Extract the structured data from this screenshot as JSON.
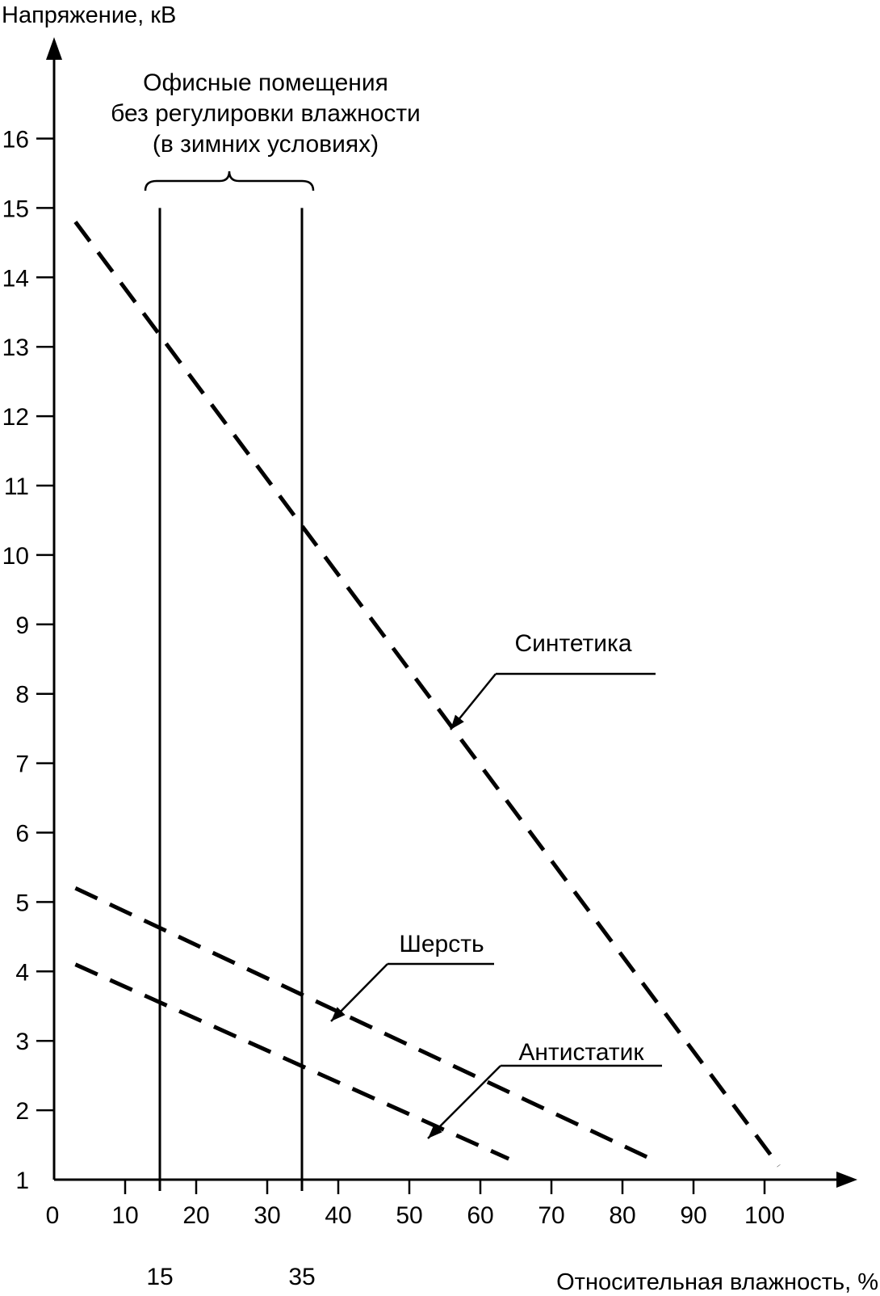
{
  "chart_data": {
    "type": "line",
    "ylabel": "Напряжение, кВ",
    "xlabel": "Относительная влажность, %",
    "xlim": [
      0,
      110
    ],
    "ylim": [
      1,
      17
    ],
    "xticks": [
      0,
      10,
      20,
      30,
      40,
      50,
      60,
      70,
      80,
      90,
      100
    ],
    "yticks": [
      1,
      2,
      3,
      4,
      5,
      6,
      7,
      8,
      9,
      10,
      11,
      12,
      13,
      14,
      15,
      16
    ],
    "grid": false,
    "series": [
      {
        "name": "Синтетика",
        "style": "dashed",
        "x": [
          3,
          102
        ],
        "y": [
          14.8,
          1.2
        ]
      },
      {
        "name": "Шерсть",
        "style": "dashed",
        "x": [
          3,
          84
        ],
        "y": [
          5.2,
          1.3
        ]
      },
      {
        "name": "Антистатик",
        "style": "dashed",
        "x": [
          3,
          64
        ],
        "y": [
          4.1,
          1.3
        ]
      }
    ],
    "reference_lines": [
      {
        "x": 15,
        "label": "15"
      },
      {
        "x": 35,
        "label": "35"
      }
    ],
    "annotation": {
      "lines": [
        "Офисные помещения",
        "без регулировки влажности",
        "(в зимних условиях)"
      ],
      "x_range": [
        15,
        35
      ]
    }
  }
}
